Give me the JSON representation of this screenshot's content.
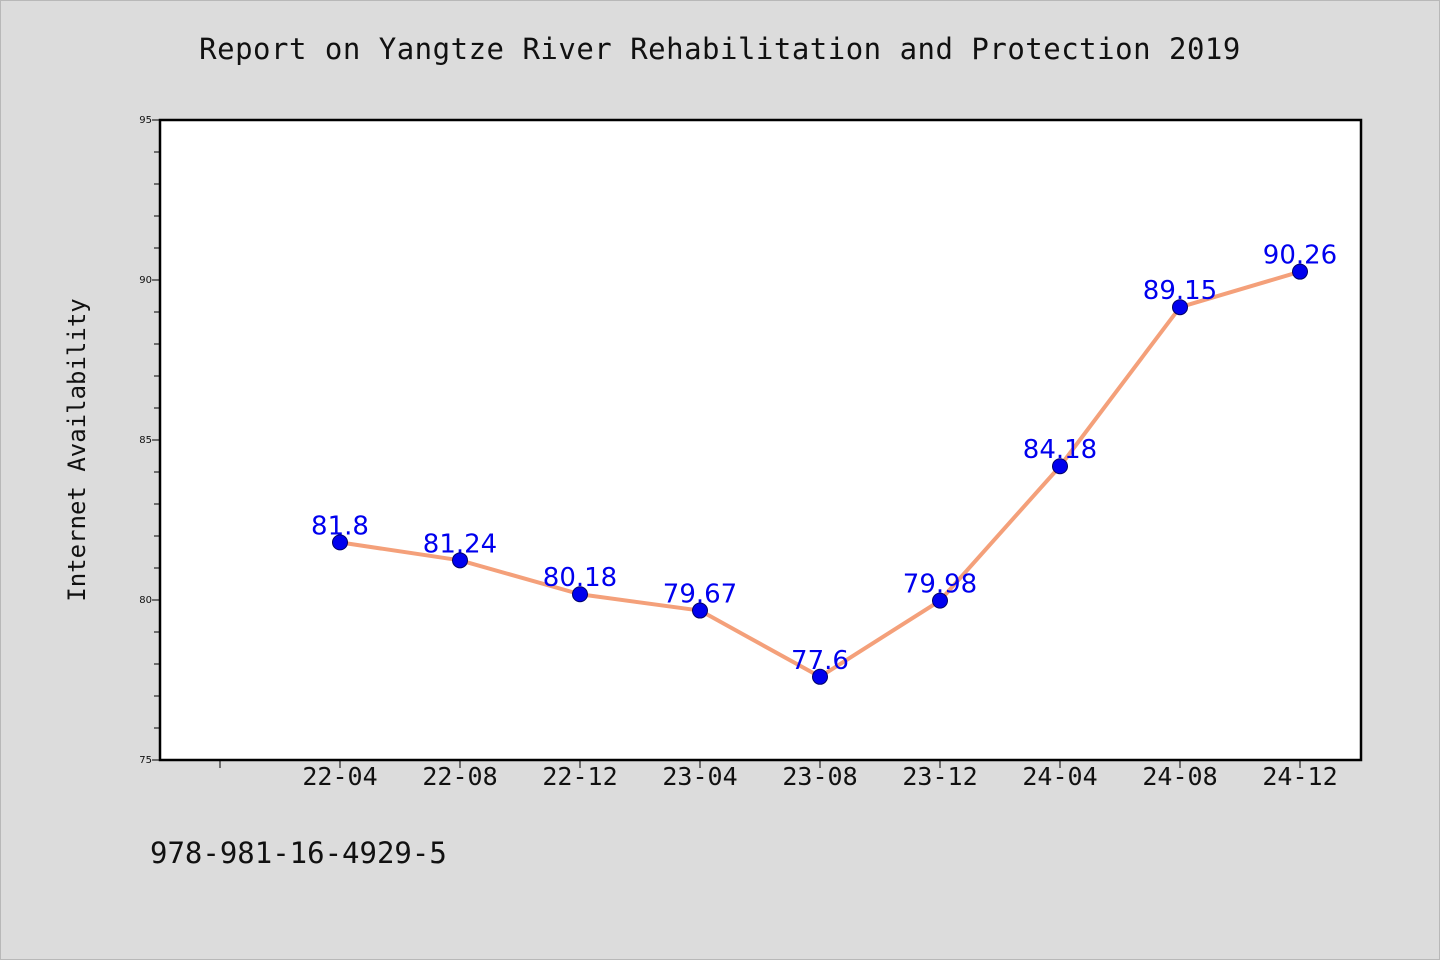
{
  "chart_data": {
    "type": "line",
    "title": "Report on Yangtze River Rehabilitation and Protection 2019",
    "xlabel": "",
    "ylabel": "Internet Availability",
    "categories": [
      "22-04",
      "22-08",
      "22-12",
      "23-04",
      "23-08",
      "23-12",
      "24-04",
      "24-08",
      "24-12"
    ],
    "series": [
      {
        "values": [
          81.8,
          81.24,
          80.18,
          79.67,
          77.6,
          79.98,
          84.18,
          89.15,
          90.26
        ],
        "labels": [
          "81.8",
          "81.24",
          "80.18",
          "79.67",
          "77.6",
          "79.98",
          "84.18",
          "89.15",
          "90.26"
        ]
      }
    ],
    "ylim": [
      75,
      95
    ],
    "yticks": [
      "75",
      "80",
      "85",
      "90",
      "95"
    ],
    "grid": false,
    "legend": "none",
    "colors": {
      "line": "#f4a07a",
      "marker_fill": "#0000ee",
      "marker_edge": "#000066",
      "data_label": "#0000ee",
      "plot_background": "#ffffff",
      "page_background": "#dcdcdc"
    }
  },
  "footer": {
    "isbn": "978-981-16-4929-5"
  }
}
